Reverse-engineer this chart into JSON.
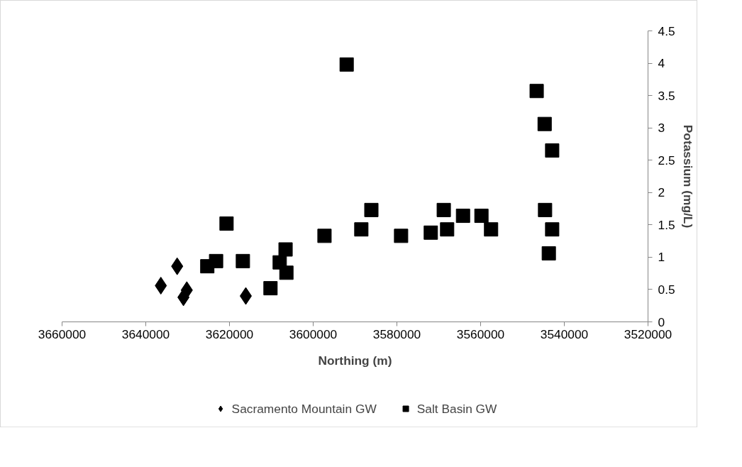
{
  "chart_data": {
    "type": "scatter",
    "xlabel": "Northing (m)",
    "ylabel": "Potassium (mg/L)",
    "xlim": [
      3660000,
      3520000
    ],
    "xticks": [
      3660000,
      3640000,
      3620000,
      3600000,
      3580000,
      3560000,
      3540000,
      3520000
    ],
    "ylim": [
      0,
      4.5
    ],
    "yticks": [
      0,
      0.5,
      1,
      1.5,
      2,
      2.5,
      3,
      3.5,
      4,
      4.5
    ],
    "grid": false,
    "legend": "bottom",
    "series": [
      {
        "name": "Sacramento Mountain GW",
        "color": "#000000",
        "marker": "diamond",
        "x": [
          3636400,
          3632500,
          3630200,
          3631000,
          3616100
        ],
        "values": [
          0.56,
          0.86,
          0.49,
          0.38,
          0.4
        ]
      },
      {
        "name": "Salt Basin GW",
        "color": "#000000",
        "marker": "square",
        "x": [
          3625300,
          3623200,
          3620700,
          3616800,
          3610200,
          3608000,
          3606600,
          3606400,
          3597300,
          3592000,
          3588500,
          3586100,
          3579000,
          3571900,
          3568800,
          3568000,
          3564200,
          3559800,
          3557500,
          3546600,
          3544700,
          3542900,
          3544600,
          3542900,
          3543700
        ],
        "values": [
          0.86,
          0.94,
          1.52,
          0.94,
          0.52,
          0.92,
          1.12,
          0.76,
          1.33,
          3.98,
          1.43,
          1.73,
          1.33,
          1.38,
          1.73,
          1.43,
          1.64,
          1.64,
          1.43,
          3.57,
          3.06,
          2.65,
          1.73,
          1.43,
          1.06
        ]
      }
    ]
  }
}
